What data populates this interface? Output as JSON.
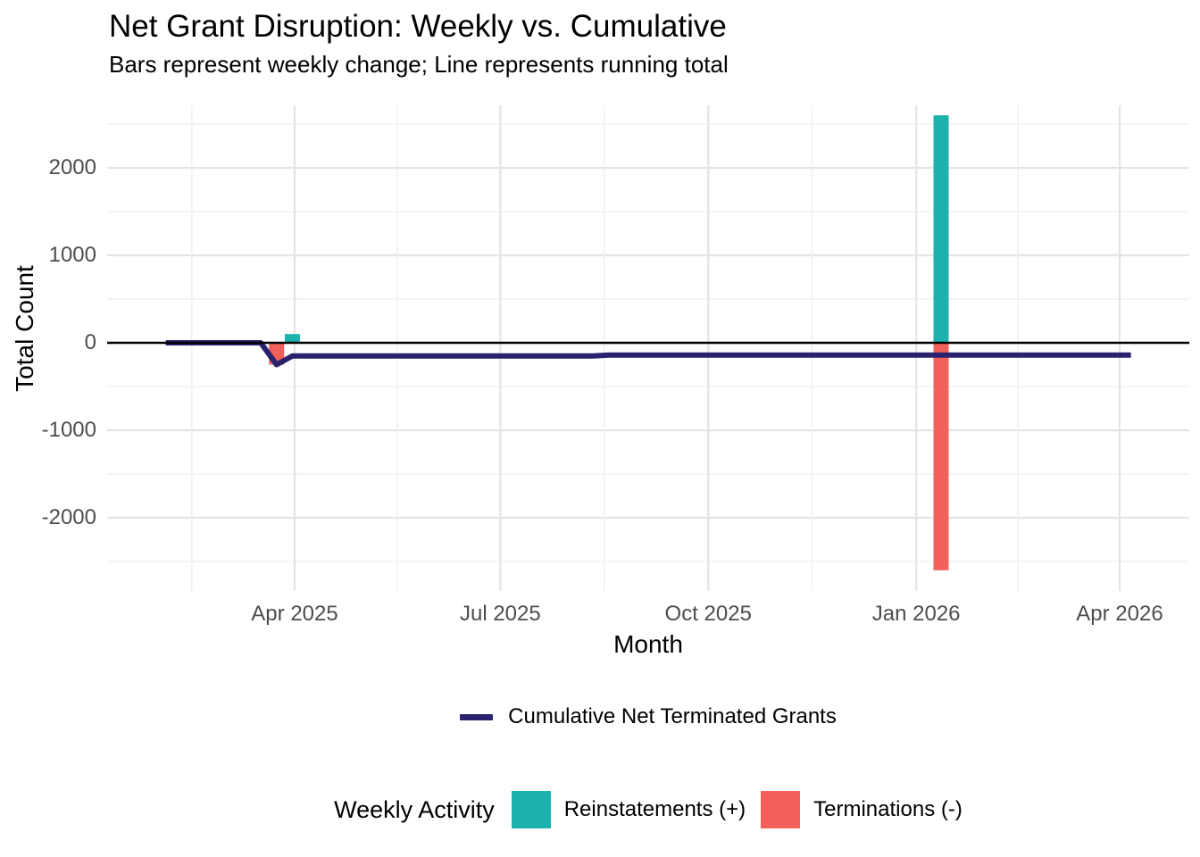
{
  "header": {
    "title": "Net Grant Disruption: Weekly vs. Cumulative",
    "subtitle": "Bars represent weekly change; Line represents running total"
  },
  "chart_data": {
    "type": "bar-line-combo",
    "title": "Net Grant Disruption: Weekly vs. Cumulative",
    "subtitle": "Bars represent weekly change; Line represents running total",
    "background": "#ffffff",
    "grid": "on",
    "x_axis": {
      "label": "Month",
      "ticks": [
        {
          "label": "Apr 2025",
          "date": "2025-04-01"
        },
        {
          "label": "Jul 2025",
          "date": "2025-07-01"
        },
        {
          "label": "Oct 2025",
          "date": "2025-10-01"
        },
        {
          "label": "Jan 2026",
          "date": "2026-01-01"
        },
        {
          "label": "Apr 2026",
          "date": "2026-04-01"
        }
      ]
    },
    "y_axis": {
      "label": "Total Count",
      "ticks": [
        {
          "label": "2000",
          "value": 2000
        },
        {
          "label": "1000",
          "value": 1000
        },
        {
          "label": "0",
          "value": 0
        },
        {
          "label": "-1000",
          "value": -1000
        },
        {
          "label": "-2000",
          "value": -2000
        }
      ],
      "minor_gridlines": [
        2500,
        1500,
        500,
        -500,
        -1500,
        -2500
      ],
      "ylim": [
        -2840,
        2715
      ]
    },
    "zero_line_color": "#000000",
    "series": [
      {
        "name": "Cumulative Net Terminated Grants",
        "type": "line",
        "color": "#29226D",
        "points": [
          {
            "date": "2025-02-03",
            "value": 0
          },
          {
            "date": "2025-03-17",
            "value": 0
          },
          {
            "date": "2025-03-24",
            "value": -250
          },
          {
            "date": "2025-03-31",
            "value": -150
          },
          {
            "date": "2025-08-11",
            "value": -150
          },
          {
            "date": "2025-08-18",
            "value": -140
          },
          {
            "date": "2026-04-06",
            "value": -140
          }
        ]
      },
      {
        "name": "Reinstatements (+)",
        "type": "bar",
        "color": "#1BB1AC",
        "points": [
          {
            "date": "2025-03-31",
            "value": 100
          },
          {
            "date": "2026-01-12",
            "value": 2600
          }
        ]
      },
      {
        "name": "Terminations (-)",
        "type": "bar",
        "color": "#F3605C",
        "points": [
          {
            "date": "2025-03-24",
            "value": -250
          },
          {
            "date": "2026-01-12",
            "value": -2600
          }
        ]
      }
    ]
  },
  "legend_line": {
    "label": "Cumulative Net Terminated Grants",
    "color": "#29226D"
  },
  "legend_weekly": {
    "title": "Weekly Activity",
    "items": [
      {
        "label": "Reinstatements (+)",
        "color": "#1BB1AC"
      },
      {
        "label": "Terminations (-)",
        "color": "#F3605C"
      }
    ]
  }
}
